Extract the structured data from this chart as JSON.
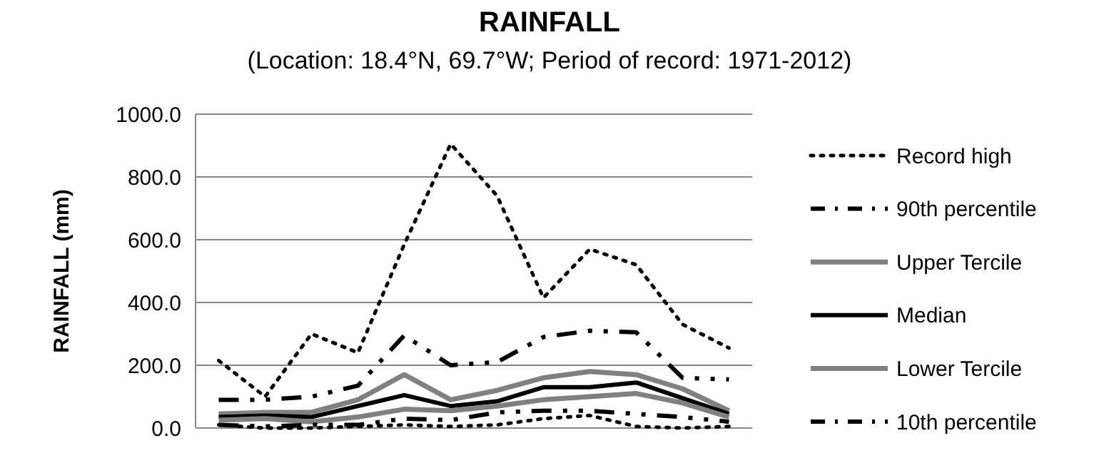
{
  "chart_data": {
    "type": "line",
    "title": "RAINFALL",
    "subtitle": "(Location: 18.4°N, 69.7°W; Period of record: 1971-2012)",
    "ylabel": "RAINFALL (mm)",
    "categories": [
      null,
      null,
      null,
      null,
      null,
      null,
      null,
      null,
      null,
      null,
      null,
      null
    ],
    "ylim": [
      0,
      1000
    ],
    "yticks": [
      {
        "value": 0,
        "label": "0.0"
      },
      {
        "value": 200,
        "label": "200.0"
      },
      {
        "value": 400,
        "label": "400.0"
      },
      {
        "value": 600,
        "label": "600.0"
      },
      {
        "value": 800,
        "label": "800.0"
      },
      {
        "value": 1000,
        "label": "1000.0"
      }
    ],
    "grid": "y",
    "legend": "right",
    "series": [
      {
        "name": "Record high",
        "color": "#000000",
        "line_style": "dotted",
        "values": [
          215,
          100,
          300,
          240,
          585,
          905,
          740,
          415,
          570,
          520,
          330,
          255
        ]
      },
      {
        "name": "90th percentile",
        "color": "#000000",
        "line_style": "dashed",
        "values": [
          90,
          90,
          100,
          135,
          295,
          200,
          210,
          290,
          310,
          305,
          160,
          155
        ]
      },
      {
        "name": "Upper Tercile",
        "color": "#808080",
        "line_style": "solid",
        "values": [
          45,
          50,
          50,
          90,
          170,
          90,
          120,
          160,
          180,
          170,
          125,
          55
        ]
      },
      {
        "name": "Median",
        "color": "#000000",
        "line_style": "solid",
        "values": [
          35,
          40,
          35,
          70,
          105,
          70,
          85,
          130,
          130,
          145,
          95,
          45
        ]
      },
      {
        "name": "Lower Tercile",
        "color": "#808080",
        "line_style": "solid",
        "values": [
          25,
          30,
          20,
          35,
          60,
          55,
          70,
          90,
          100,
          110,
          80,
          35
        ]
      },
      {
        "name": "10th percentile",
        "color": "#000000",
        "line_style": "dashed",
        "values": [
          10,
          5,
          10,
          10,
          30,
          25,
          50,
          55,
          55,
          45,
          35,
          20
        ]
      },
      {
        "color": "#000000",
        "line_style": "dotted",
        "values": [
          10,
          0,
          0,
          5,
          10,
          5,
          10,
          30,
          40,
          5,
          0,
          5
        ]
      }
    ]
  }
}
